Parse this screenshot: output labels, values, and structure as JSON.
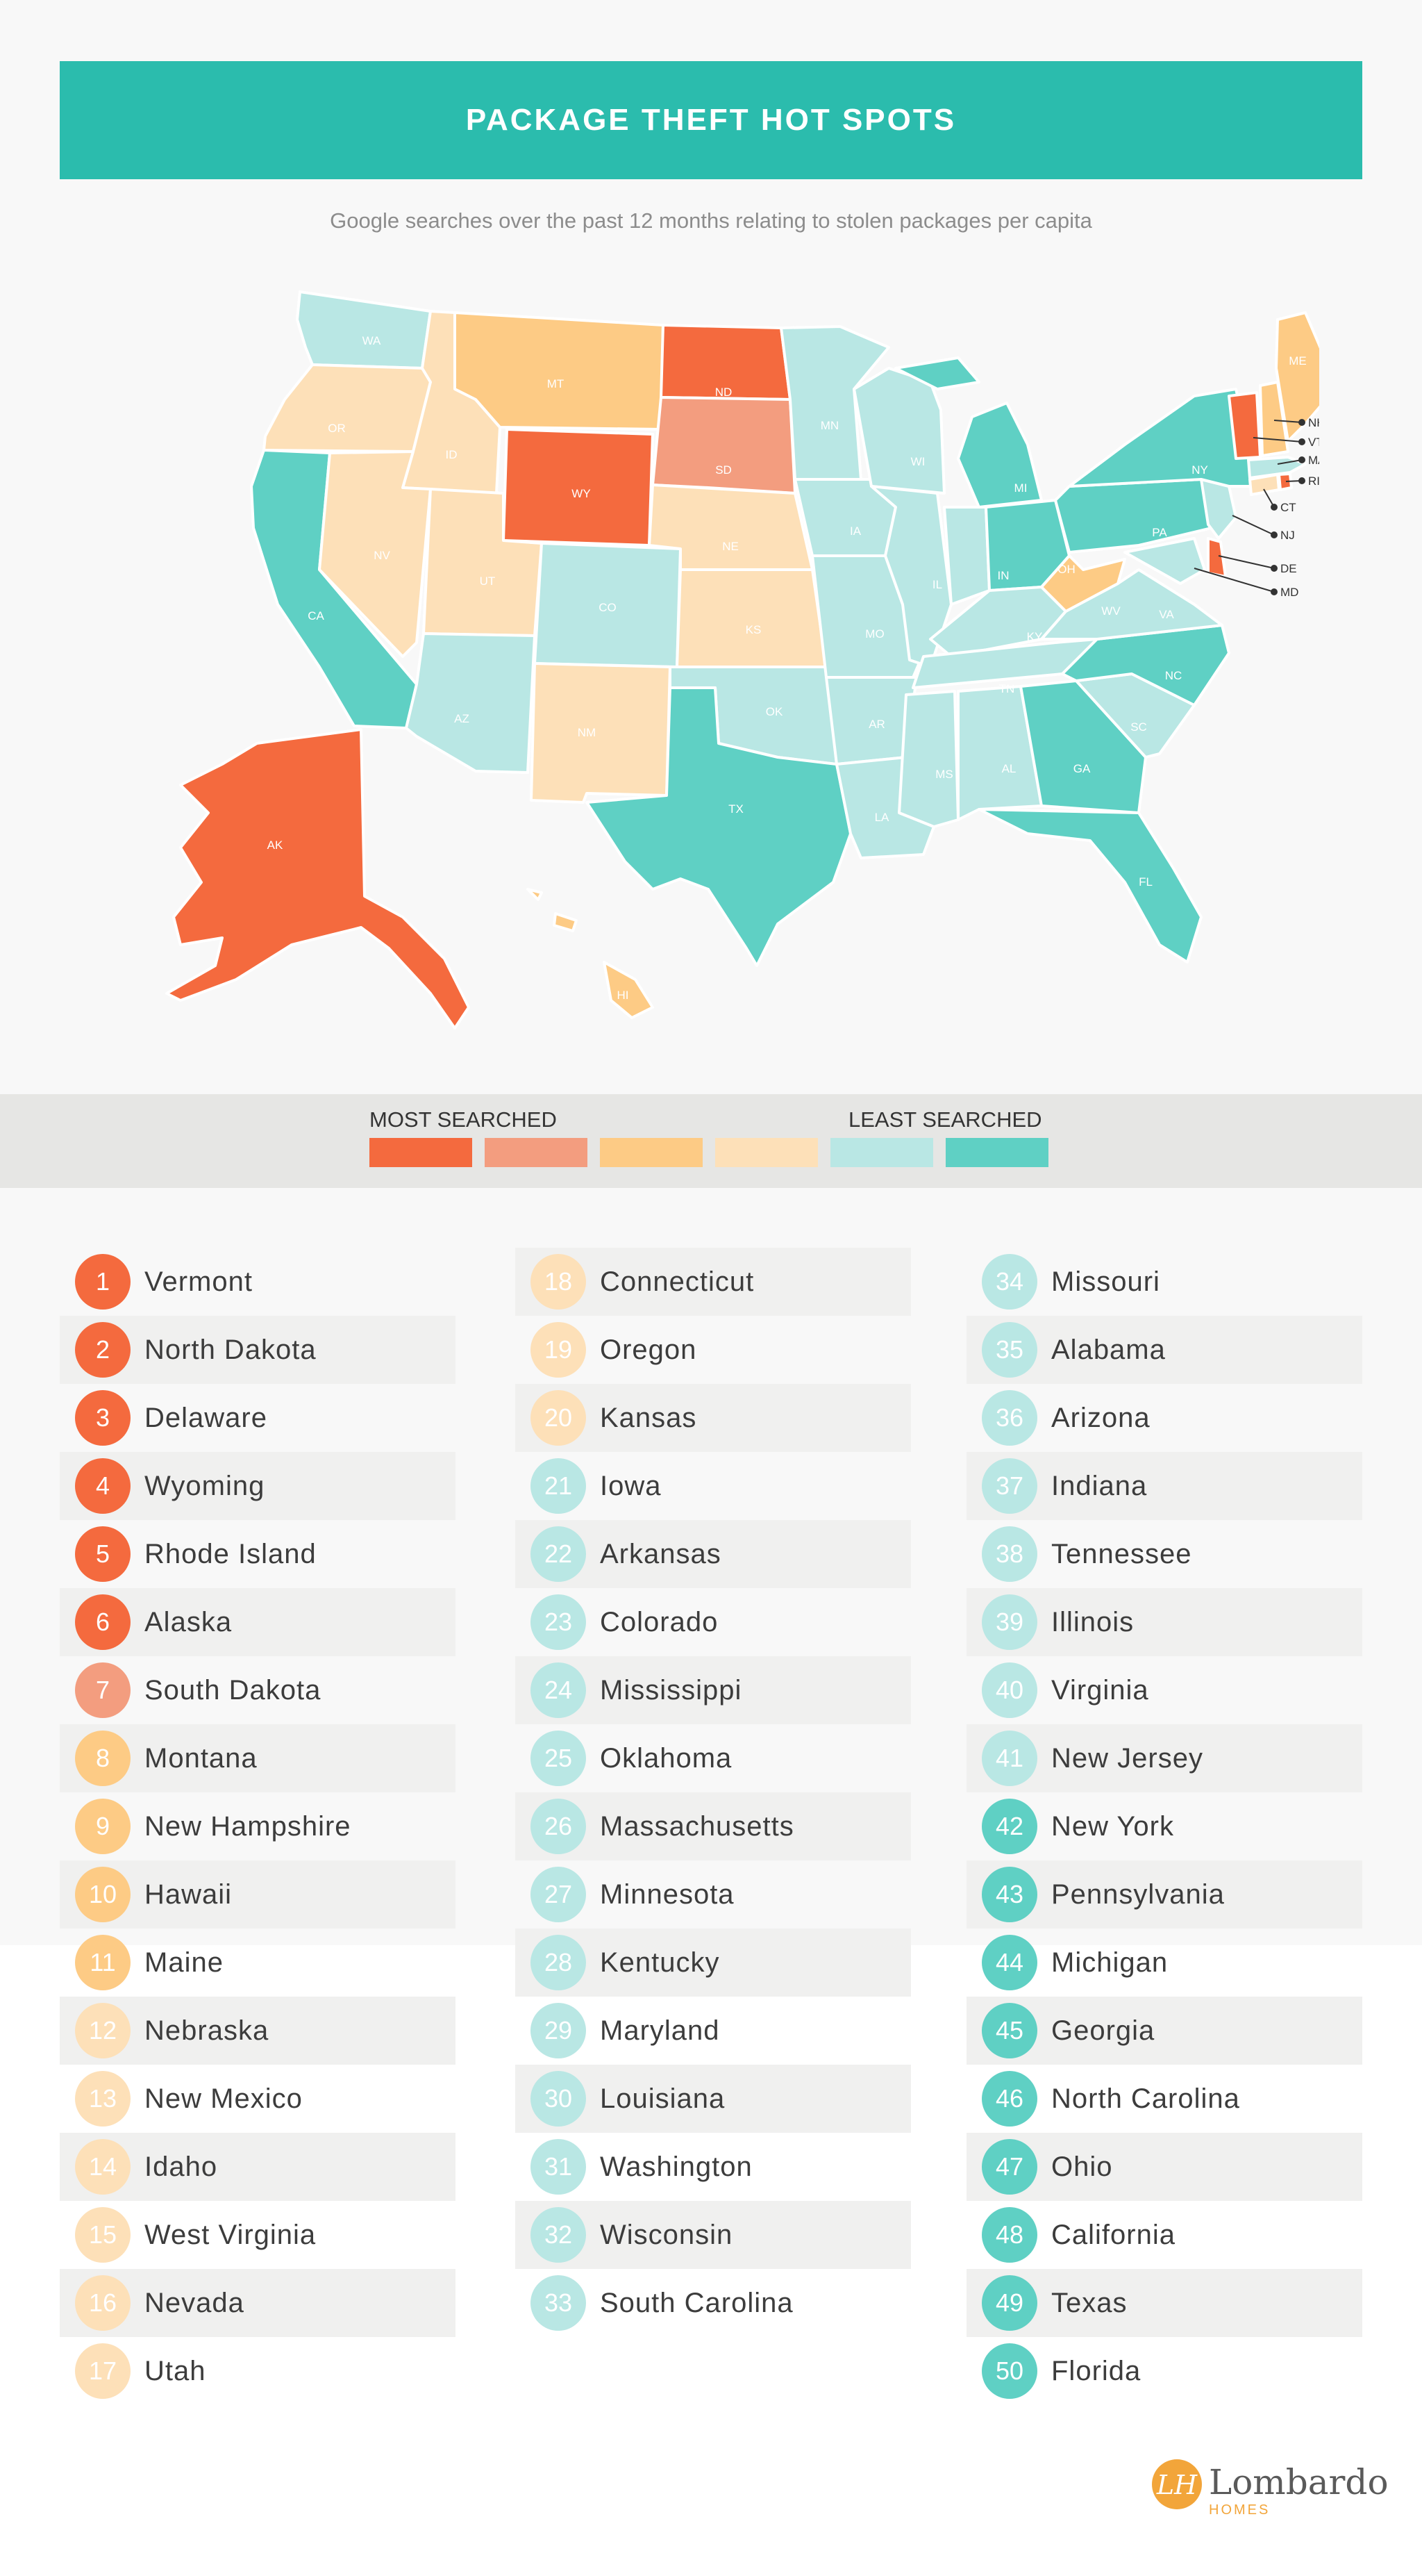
{
  "title": "PACKAGE THEFT HOT SPOTS",
  "subtitle": "Google searches over the past 12 months relating to stolen packages per capita",
  "legend": {
    "most": "MOST SEARCHED",
    "least": "LEAST SEARCHED",
    "colors": [
      "#f46a3e",
      "#f39d7f",
      "#fdcb85",
      "#fde0b8",
      "#b9e7e4",
      "#5fd0c4"
    ]
  },
  "map_labels": {
    "WA": "WA",
    "OR": "OR",
    "CA": "CA",
    "ID": "ID",
    "NV": "NV",
    "MT": "MT",
    "WY": "WY",
    "UT": "UT",
    "AZ": "AZ",
    "CO": "CO",
    "NM": "NM",
    "ND": "ND",
    "SD": "SD",
    "NE": "NE",
    "KS": "KS",
    "OK": "OK",
    "TX": "TX",
    "MN": "MN",
    "IA": "IA",
    "MO": "MO",
    "AR": "AR",
    "LA": "LA",
    "WI": "WI",
    "IL": "IL",
    "MS": "MS",
    "MI": "MI",
    "IN": "IN",
    "KY": "KY",
    "TN": "TN",
    "AL": "AL",
    "OH": "OH",
    "WV": "WV",
    "VA": "VA",
    "NC": "NC",
    "SC": "SC",
    "GA": "GA",
    "FL": "FL",
    "PA": "PA",
    "NY": "NY",
    "ME": "ME",
    "AK": "AK",
    "HI": "HI",
    "NH": "NH",
    "VT": "VT",
    "MA": "MA",
    "RI": "RI",
    "CT": "CT",
    "NJ": "NJ",
    "DE": "DE",
    "MD": "MD"
  },
  "rankings": [
    {
      "rank": "1",
      "state": "Vermont",
      "color": "#f46a3e"
    },
    {
      "rank": "2",
      "state": "North Dakota",
      "color": "#f46a3e"
    },
    {
      "rank": "3",
      "state": "Delaware",
      "color": "#f46a3e"
    },
    {
      "rank": "4",
      "state": "Wyoming",
      "color": "#f46a3e"
    },
    {
      "rank": "5",
      "state": "Rhode Island",
      "color": "#f46a3e"
    },
    {
      "rank": "6",
      "state": "Alaska",
      "color": "#f46a3e"
    },
    {
      "rank": "7",
      "state": "South Dakota",
      "color": "#f39d7f"
    },
    {
      "rank": "8",
      "state": "Montana",
      "color": "#fdcb85"
    },
    {
      "rank": "9",
      "state": "New Hampshire",
      "color": "#fdcb85"
    },
    {
      "rank": "10",
      "state": "Hawaii",
      "color": "#fdcb85"
    },
    {
      "rank": "11",
      "state": "Maine",
      "color": "#fdcb85"
    },
    {
      "rank": "12",
      "state": "Nebraska",
      "color": "#fde0b8"
    },
    {
      "rank": "13",
      "state": "New Mexico",
      "color": "#fde0b8"
    },
    {
      "rank": "14",
      "state": "Idaho",
      "color": "#fde0b8"
    },
    {
      "rank": "15",
      "state": "West Virginia",
      "color": "#fde0b8"
    },
    {
      "rank": "16",
      "state": "Nevada",
      "color": "#fde0b8"
    },
    {
      "rank": "17",
      "state": "Utah",
      "color": "#fde0b8"
    },
    {
      "rank": "18",
      "state": "Connecticut",
      "color": "#fde0b8"
    },
    {
      "rank": "19",
      "state": "Oregon",
      "color": "#fde0b8"
    },
    {
      "rank": "20",
      "state": "Kansas",
      "color": "#fde0b8"
    },
    {
      "rank": "21",
      "state": "Iowa",
      "color": "#b9e7e4"
    },
    {
      "rank": "22",
      "state": "Arkansas",
      "color": "#b9e7e4"
    },
    {
      "rank": "23",
      "state": "Colorado",
      "color": "#b9e7e4"
    },
    {
      "rank": "24",
      "state": "Mississippi",
      "color": "#b9e7e4"
    },
    {
      "rank": "25",
      "state": "Oklahoma",
      "color": "#b9e7e4"
    },
    {
      "rank": "26",
      "state": "Massachusetts",
      "color": "#b9e7e4"
    },
    {
      "rank": "27",
      "state": "Minnesota",
      "color": "#b9e7e4"
    },
    {
      "rank": "28",
      "state": "Kentucky",
      "color": "#b9e7e4"
    },
    {
      "rank": "29",
      "state": "Maryland",
      "color": "#b9e7e4"
    },
    {
      "rank": "30",
      "state": "Louisiana",
      "color": "#b9e7e4"
    },
    {
      "rank": "31",
      "state": "Washington",
      "color": "#b9e7e4"
    },
    {
      "rank": "32",
      "state": "Wisconsin",
      "color": "#b9e7e4"
    },
    {
      "rank": "33",
      "state": "South Carolina",
      "color": "#b9e7e4"
    },
    {
      "rank": "34",
      "state": "Missouri",
      "color": "#b9e7e4"
    },
    {
      "rank": "35",
      "state": "Alabama",
      "color": "#b9e7e4"
    },
    {
      "rank": "36",
      "state": "Arizona",
      "color": "#b9e7e4"
    },
    {
      "rank": "37",
      "state": "Indiana",
      "color": "#b9e7e4"
    },
    {
      "rank": "38",
      "state": "Tennessee",
      "color": "#b9e7e4"
    },
    {
      "rank": "39",
      "state": "Illinois",
      "color": "#b9e7e4"
    },
    {
      "rank": "40",
      "state": "Virginia",
      "color": "#b9e7e4"
    },
    {
      "rank": "41",
      "state": "New Jersey",
      "color": "#b9e7e4"
    },
    {
      "rank": "42",
      "state": "New York",
      "color": "#5fd0c4"
    },
    {
      "rank": "43",
      "state": "Pennsylvania",
      "color": "#5fd0c4"
    },
    {
      "rank": "44",
      "state": "Michigan",
      "color": "#5fd0c4"
    },
    {
      "rank": "45",
      "state": "Georgia",
      "color": "#5fd0c4"
    },
    {
      "rank": "46",
      "state": "North Carolina",
      "color": "#5fd0c4"
    },
    {
      "rank": "47",
      "state": "Ohio",
      "color": "#5fd0c4"
    },
    {
      "rank": "48",
      "state": "California",
      "color": "#5fd0c4"
    },
    {
      "rank": "49",
      "state": "Texas",
      "color": "#5fd0c4"
    },
    {
      "rank": "50",
      "state": "Florida",
      "color": "#5fd0c4"
    }
  ],
  "logo": {
    "name": "Lombardo",
    "sub": "HOMES",
    "mark": "LH"
  }
}
